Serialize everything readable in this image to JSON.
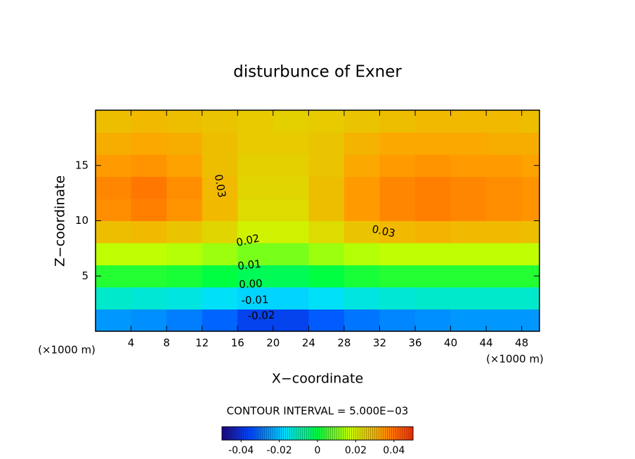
{
  "chart_data": {
    "type": "contour",
    "title": "disturbunce of Exner",
    "x_label": "X−coordinate",
    "y_label": "Z−coordinate",
    "x_unit_label": "(×1000 m)",
    "contour_interval": "CONTOUR INTERVAL = 5.000E−03",
    "xlim": [
      0,
      50
    ],
    "ylim": [
      0,
      20
    ],
    "xticks": [
      4,
      8,
      12,
      16,
      20,
      24,
      28,
      32,
      36,
      40,
      44,
      48
    ],
    "yticks": [
      5,
      10,
      15
    ],
    "xbins": [
      0,
      4,
      8,
      12,
      16,
      20,
      24,
      28,
      32,
      36,
      40,
      44,
      48,
      50
    ],
    "ybins": [
      0,
      2,
      4,
      6,
      8,
      10,
      12,
      14,
      16,
      18,
      20
    ],
    "z": [
      [
        -0.025,
        -0.026,
        -0.028,
        -0.031,
        -0.036,
        -0.036,
        -0.032,
        -0.029,
        -0.027,
        -0.026,
        -0.025,
        -0.025,
        -0.025
      ],
      [
        -0.012,
        -0.013,
        -0.014,
        -0.016,
        -0.018,
        -0.018,
        -0.016,
        -0.014,
        -0.013,
        -0.012,
        -0.012,
        -0.012,
        -0.012
      ],
      [
        0.003,
        0.003,
        0.002,
        0.0,
        -0.002,
        -0.002,
        0.0,
        0.002,
        0.003,
        0.003,
        0.003,
        0.003,
        0.003
      ],
      [
        0.016,
        0.016,
        0.015,
        0.013,
        0.01,
        0.01,
        0.013,
        0.015,
        0.016,
        0.016,
        0.016,
        0.016,
        0.016
      ],
      [
        0.028,
        0.029,
        0.027,
        0.024,
        0.019,
        0.019,
        0.023,
        0.027,
        0.029,
        0.03,
        0.029,
        0.029,
        0.028
      ],
      [
        0.036,
        0.038,
        0.035,
        0.029,
        0.023,
        0.023,
        0.028,
        0.034,
        0.037,
        0.038,
        0.037,
        0.036,
        0.035
      ],
      [
        0.037,
        0.039,
        0.036,
        0.029,
        0.024,
        0.024,
        0.028,
        0.034,
        0.037,
        0.038,
        0.037,
        0.036,
        0.035
      ],
      [
        0.034,
        0.035,
        0.033,
        0.028,
        0.025,
        0.025,
        0.027,
        0.032,
        0.034,
        0.035,
        0.034,
        0.034,
        0.033
      ],
      [
        0.031,
        0.032,
        0.031,
        0.028,
        0.026,
        0.026,
        0.027,
        0.03,
        0.032,
        0.032,
        0.032,
        0.031,
        0.031
      ],
      [
        0.028,
        0.029,
        0.028,
        0.027,
        0.026,
        0.025,
        0.026,
        0.027,
        0.028,
        0.029,
        0.029,
        0.029,
        0.028
      ]
    ],
    "contour_labels": [
      0.03,
      0.02,
      0.01,
      {
        "value": 0.0,
        "label": "0.00"
      },
      -0.01,
      -0.02,
      0.03
    ],
    "clim": [
      -0.05,
      0.05
    ],
    "colorbar_ticks": [
      -0.04,
      -0.02,
      0,
      0.02,
      0.04
    ],
    "colormap": [
      "#1a0090",
      "#0050ff",
      "#00e0ff",
      "#00ff40",
      "#c8ff00",
      "#ffa000",
      "#ff2800"
    ]
  }
}
